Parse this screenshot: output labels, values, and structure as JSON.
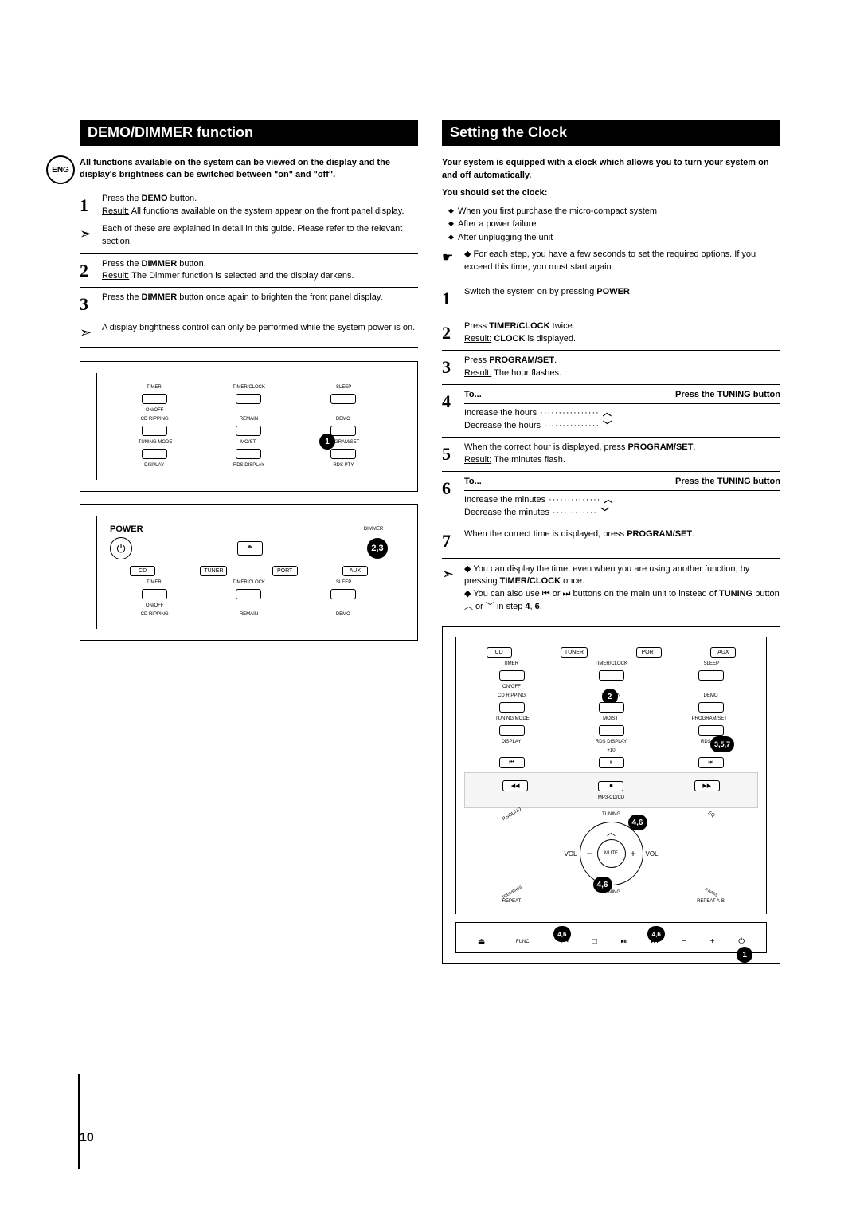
{
  "page_number": "10",
  "eng": "ENG",
  "left": {
    "title": "DEMO/DIMMER function",
    "intro": "All functions available on the system can be viewed on the display and the display's brightness can be switched between \"on\" and \"off\".",
    "steps": [
      {
        "n": "1",
        "text": "Press the <b>DEMO</b> button.<br><u>Result:</u> All functions available on the system appear on the front panel display."
      },
      {
        "n": "2",
        "text": "Press the <b>DIMMER</b> button.<br><u>Result:</u> The Dimmer function is selected and the display darkens."
      },
      {
        "n": "3",
        "text": "Press the <b>DIMMER</b> button once again to brighten the front panel display."
      }
    ],
    "note1": "Each of these are explained in detail in this guide. Please refer to the relevant section.",
    "note2": "A display brightness control can only be performed while the system power is on.",
    "remote1": {
      "rows": [
        [
          "TIMER",
          "TIMER/CLOCK",
          "SLEEP"
        ],
        [
          "ON/OFF",
          "",
          ""
        ],
        [
          "CD RIPPING",
          "REMAIN",
          "DEMO"
        ],
        [
          "TUNING MODE",
          "MO/ST",
          "PROGRAM/SET"
        ],
        [
          "DISPLAY",
          "RDS DISPLAY",
          "RDS PTY"
        ]
      ],
      "marker": "1"
    },
    "remote2": {
      "power": "POWER",
      "dimmer": "DIMMER",
      "rows": [
        [
          "CD",
          "TUNER",
          "PORT",
          "AUX"
        ],
        [
          "TIMER",
          "TIMER/CLOCK",
          "SLEEP"
        ],
        [
          "ON/OFF",
          "",
          ""
        ],
        [
          "CD RIPPING",
          "REMAIN",
          "DEMO"
        ]
      ],
      "marker": "2,3"
    }
  },
  "right": {
    "title": "Setting the Clock",
    "intro1": "Your system is equipped with a clock which allows you to turn your system on and off automatically.",
    "intro2": "You should set the clock:",
    "bullets": [
      "When you first purchase the micro-compact system",
      "After a power failure",
      "After unplugging the unit"
    ],
    "hand_note": "For each step, you have a few seconds to set the required options. If you exceed this time, you must start again.",
    "steps": [
      {
        "n": "1",
        "text": "Switch the system on by pressing <b>POWER</b>."
      },
      {
        "n": "2",
        "text": "Press <b>TIMER/CLOCK</b> twice.<br><u>Result:</u> <b>CLOCK</b> is displayed."
      },
      {
        "n": "3",
        "text": "Press <b>PROGRAM/SET</b>.<br><u>Result:</u> The hour flashes."
      }
    ],
    "step4": {
      "n": "4",
      "to": "To...",
      "tuning": "Press the TUNING button",
      "inc": "Increase the hours",
      "dec": "Decrease the hours"
    },
    "step5": {
      "n": "5",
      "text": "When the correct hour is displayed, press <b>PROGRAM/SET</b>.<br><u>Result:</u> The minutes flash."
    },
    "step6": {
      "n": "6",
      "to": "To...",
      "tuning": "Press the TUNING button",
      "inc": "Increase the minutes",
      "dec": "Decrease the minutes"
    },
    "step7": {
      "n": "7",
      "text": "When the correct time is displayed, press <b>PROGRAM/SET</b>."
    },
    "endnote1": "You can display the time, even when you are using another function, by pressing <b>TIMER/CLOCK</b> once.",
    "endnote2": "You can also use ⏮ or ⏭ buttons on the main unit to instead of <b>TUNING</b> button ︿ or ﹀ in step <b>4</b>, <b>6</b>.",
    "remote": {
      "rows1": [
        [
          "CD",
          "TUNER",
          "PORT",
          "AUX"
        ]
      ],
      "labels": [
        "TIMER",
        "TIMER/CLOCK",
        "SLEEP",
        "ON/OFF",
        "CD RIPPING",
        "REMAIN",
        "DEMO",
        "TUNING MODE",
        "MO/ST",
        "PROGRAM/SET",
        "DISPLAY",
        "RDS DISPLAY",
        "RDS PTY",
        "+10",
        "MP3-CD/CD",
        "TUNING",
        "VOL",
        "MUTE",
        "REPEAT",
        "REPEAT A-B"
      ],
      "markers": {
        "m2": "2",
        "m357": "3,5,7",
        "m46a": "4,6",
        "m46b": "4,6"
      }
    },
    "unit": {
      "markers": {
        "a": "4,6",
        "b": "4,6",
        "c": "1"
      },
      "func": "FUNC."
    }
  }
}
